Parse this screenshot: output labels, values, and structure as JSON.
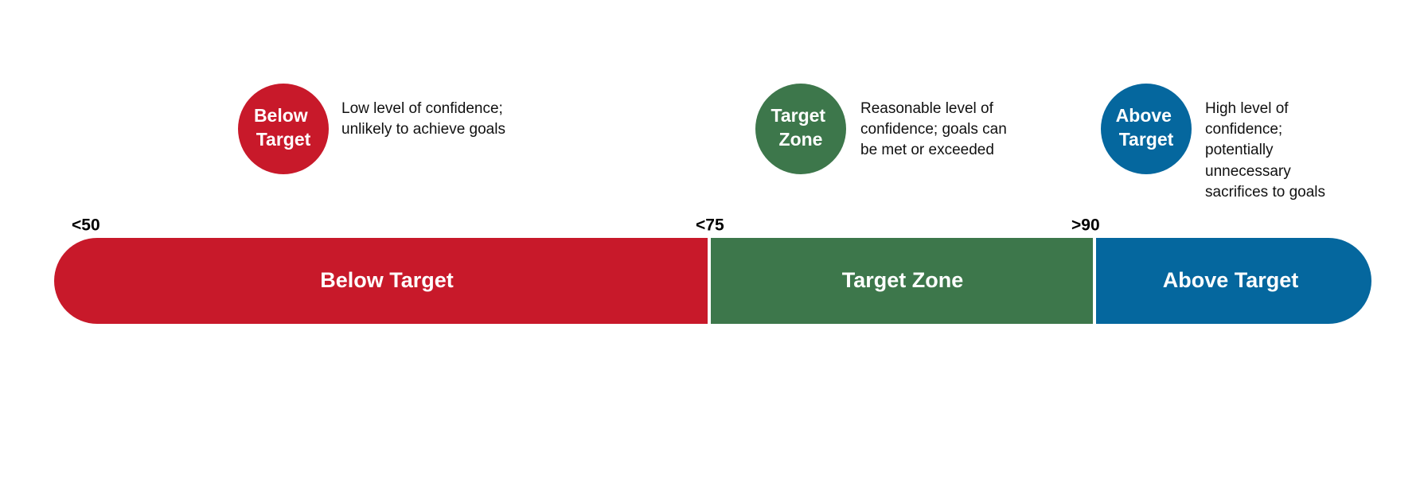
{
  "legend": [
    {
      "badge": [
        "Below",
        "Target"
      ],
      "description": [
        "Low level of confidence;",
        "unlikely to achieve goals"
      ]
    },
    {
      "badge": [
        "Target",
        "Zone"
      ],
      "description": [
        "Reasonable level of",
        "confidence; goals can",
        "be met or exceeded"
      ]
    },
    {
      "badge": [
        "Above",
        "Target"
      ],
      "description": [
        "High level of",
        "confidence;",
        "potentially",
        "unnecessary",
        "sacrifices to goals"
      ]
    }
  ],
  "scale": {
    "markers": [
      "<50",
      "<75",
      ">90"
    ],
    "segments": [
      "Below Target",
      "Target Zone",
      "Above Target"
    ]
  }
}
